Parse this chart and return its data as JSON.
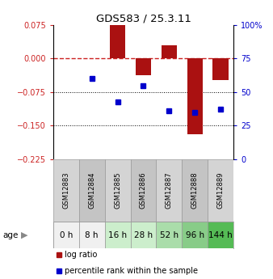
{
  "title": "GDS583 / 25.3.11",
  "samples": [
    "GSM12883",
    "GSM12884",
    "GSM12885",
    "GSM12886",
    "GSM12887",
    "GSM12888",
    "GSM12889"
  ],
  "ages": [
    "0 h",
    "8 h",
    "16 h",
    "28 h",
    "52 h",
    "96 h",
    "144 h"
  ],
  "log_ratios": [
    0.0,
    0.0,
    0.075,
    -0.038,
    0.03,
    -0.17,
    -0.048
  ],
  "percentile_ranks": [
    null,
    60,
    43,
    55,
    36,
    35,
    37
  ],
  "bar_color": "#aa1111",
  "dot_color": "#0000cc",
  "ylim_left": [
    -0.225,
    0.075
  ],
  "ylim_right": [
    0,
    100
  ],
  "yticks_left": [
    0.075,
    0,
    -0.075,
    -0.15,
    -0.225
  ],
  "yticks_right": [
    100,
    75,
    50,
    25,
    0
  ],
  "hline_zero": 0,
  "dotted_lines": [
    -0.075,
    -0.15
  ],
  "age_colors": [
    "#f0f0f0",
    "#f0f0f0",
    "#cceecc",
    "#cceecc",
    "#aaddaa",
    "#88cc88",
    "#55bb55"
  ],
  "bar_width": 0.6,
  "zero_line_color": "#cc2222",
  "background_color": "#ffffff",
  "gsm_colors_even": "#d4d4d4",
  "gsm_colors_odd": "#c4c4c4"
}
